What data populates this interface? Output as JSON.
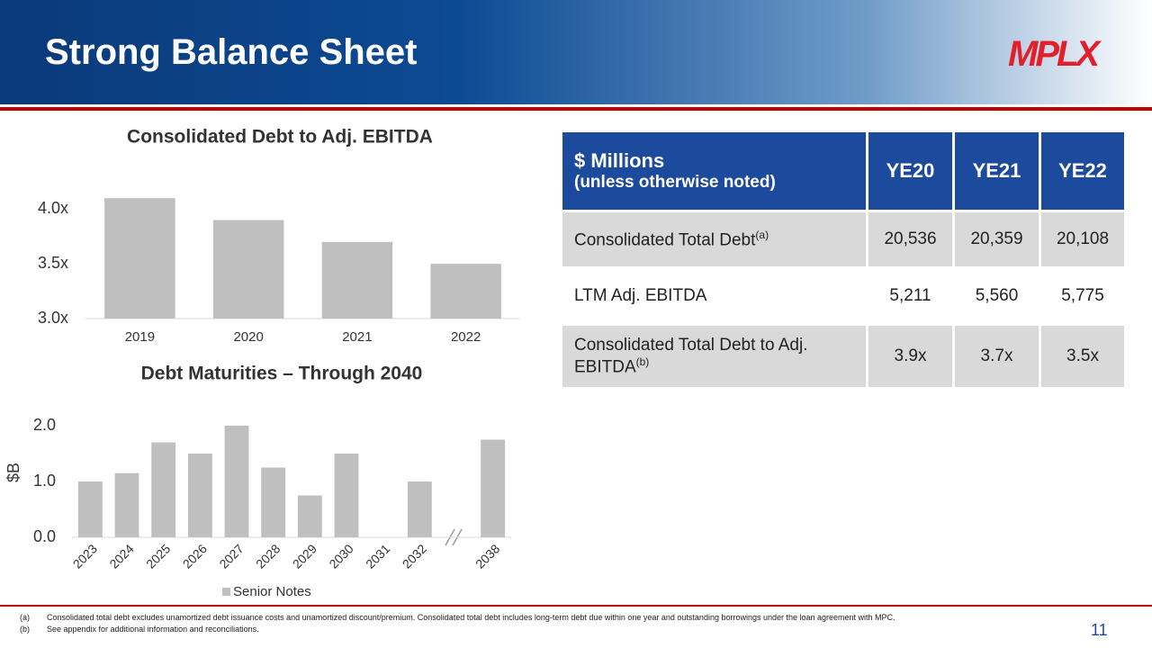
{
  "header": {
    "title": "Strong Balance Sheet",
    "logo": "MPLX"
  },
  "chart_data": [
    {
      "type": "bar",
      "title": "Consolidated Debt to Adj. EBITDA",
      "categories": [
        "2019",
        "2020",
        "2021",
        "2022"
      ],
      "values": [
        4.1,
        3.9,
        3.7,
        3.5
      ],
      "color": "#bfbfbf",
      "ylim": [
        3.0,
        4.2
      ],
      "yticks": [
        {
          "value": 3.0,
          "label": "3.0x"
        },
        {
          "value": 3.5,
          "label": "3.5x"
        },
        {
          "value": 4.0,
          "label": "4.0x"
        }
      ]
    },
    {
      "type": "bar",
      "title": "Debt Maturities – Through 2040",
      "y_label": "$B",
      "categories": [
        "2023",
        "2024",
        "2025",
        "2026",
        "2027",
        "2028",
        "2029",
        "2030",
        "2031",
        "2032",
        "2038"
      ],
      "series": [
        {
          "name": "Senior Notes",
          "color": "#bfbfbf",
          "values": [
            1.0,
            1.15,
            1.7,
            1.5,
            2.0,
            1.25,
            0.75,
            1.5,
            0,
            1.0,
            1.75
          ]
        }
      ],
      "ylim": [
        0,
        2.0
      ],
      "yticks": [
        {
          "value": 0,
          "label": "0.0"
        },
        {
          "value": 1,
          "label": "1.0"
        },
        {
          "value": 2,
          "label": "2.0"
        }
      ],
      "legend": "bottom"
    }
  ],
  "table": {
    "header": {
      "label": "$ Millions",
      "note": "(unless otherwise noted)",
      "columns": [
        "YE20",
        "YE21",
        "YE22"
      ]
    },
    "rows": [
      {
        "label": "Consolidated Total Debt",
        "sup": "(a)",
        "values": [
          "20,536",
          "20,359",
          "20,108"
        ]
      },
      {
        "label": "LTM Adj. EBITDA",
        "values": [
          "5,211",
          "5,560",
          "5,775"
        ]
      },
      {
        "label": "Consolidated Total Debt to Adj. EBITDA",
        "sup": "(b)",
        "values": [
          "3.9x",
          "3.7x",
          "3.5x"
        ]
      }
    ]
  },
  "footnotes": [
    {
      "mark": "(a)",
      "text": "Consolidated total debt excludes unamortized debt issuance costs and unamortized discount/premium. Consolidated total debt includes long-term debt due within one year and outstanding borrowings under the loan agreement with MPC."
    },
    {
      "mark": "(b)",
      "text": "See appendix for additional information and reconciliations."
    }
  ],
  "page_number": "11"
}
